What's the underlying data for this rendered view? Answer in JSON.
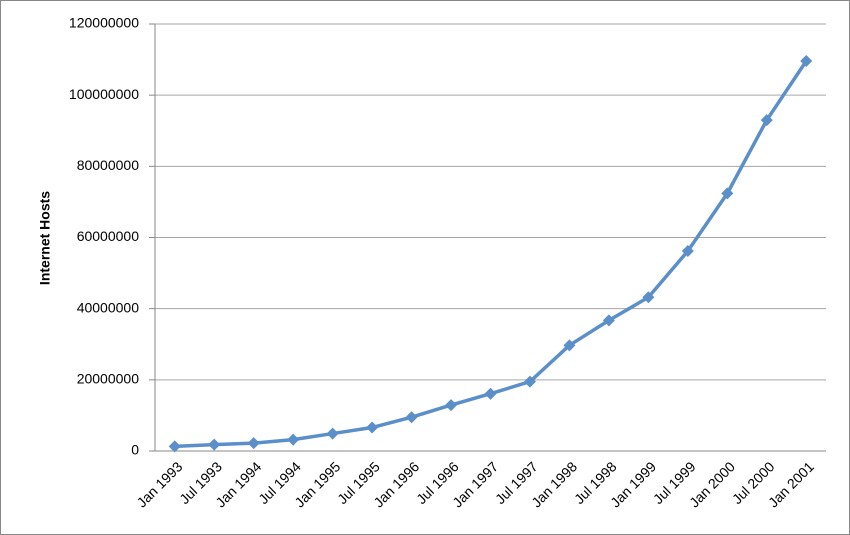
{
  "chart_data": {
    "type": "line",
    "y_label": "Internet Hosts",
    "categories": [
      "Jan 1993",
      "Jul 1993",
      "Jan 1994",
      "Jul 1994",
      "Jan 1995",
      "Jul 1995",
      "Jan 1996",
      "Jul 1996",
      "Jan 1997",
      "Jul 1997",
      "Jan 1998",
      "Jul 1998",
      "Jan 1999",
      "Jul 1999",
      "Jan 2000",
      "Jul 2000",
      "Jan 2001"
    ],
    "series": [
      {
        "name": "Internet Hosts",
        "color": "#5b8fc9",
        "values": [
          1300000,
          1800000,
          2200000,
          3200000,
          4900000,
          6600000,
          9500000,
          12900000,
          16100000,
          19500000,
          29700000,
          36700000,
          43200000,
          56200000,
          72400000,
          93000000,
          109600000
        ]
      }
    ],
    "ylim": [
      0,
      120000000
    ],
    "yticks": [
      0,
      20000000,
      40000000,
      60000000,
      80000000,
      100000000,
      120000000
    ],
    "grid": true
  }
}
